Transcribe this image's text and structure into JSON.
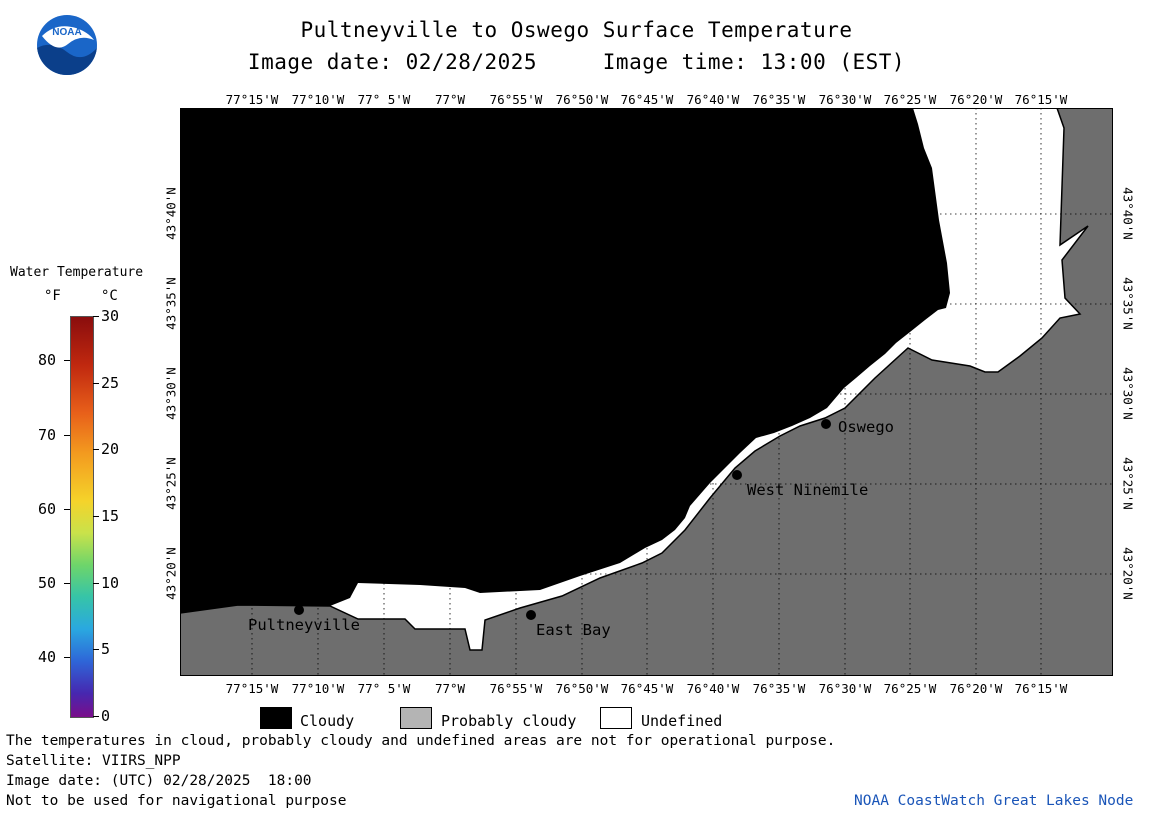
{
  "title": "Pultneyville to Oswego Surface Temperature",
  "subtitle": "Image date: 02/28/2025     Image time: 13:00 (EST)",
  "logo_text": "NOAA",
  "colorbar": {
    "title": "Water Temperature",
    "unit_f": "°F",
    "unit_c": "°C",
    "f_ticks": [
      "80",
      "70",
      "60",
      "50",
      "40"
    ],
    "c_ticks": [
      "30",
      "25",
      "20",
      "15",
      "10",
      "5",
      "0"
    ],
    "f_range": [
      32,
      86
    ],
    "c_range": [
      0,
      30
    ]
  },
  "map": {
    "lon_labels": [
      "77°15'W",
      "77°10'W",
      "77° 5'W",
      "77°W",
      "76°55'W",
      "76°50'W",
      "76°45'W",
      "76°40'W",
      "76°35'W",
      "76°30'W",
      "76°25'W",
      "76°20'W",
      "76°15'W"
    ],
    "lat_labels": [
      "43°40'N",
      "43°35'N",
      "43°30'N",
      "43°25'N",
      "43°20'N"
    ],
    "cities": [
      {
        "name": "Pultneyville"
      },
      {
        "name": "East Bay"
      },
      {
        "name": "West Ninemile"
      },
      {
        "name": "Oswego"
      }
    ],
    "colors": {
      "cloudy": "#000000",
      "probably_cloudy": "#b4b4b4",
      "land": "#6e6e6e",
      "undefined": "#ffffff"
    }
  },
  "legend": [
    {
      "label": "Cloudy",
      "color": "#000000"
    },
    {
      "label": "Probably cloudy",
      "color": "#b4b4b4"
    },
    {
      "label": "Undefined",
      "color": "#ffffff"
    }
  ],
  "footer": {
    "note": "The temperatures in cloud, probably cloudy and undefined areas are not for operational purpose.",
    "satellite": "Satellite: VIIRS_NPP",
    "utc_date": "Image date: (UTC) 02/28/2025  18:00",
    "nav": "Not to be used for navigational purpose",
    "credit": "NOAA CoastWatch Great Lakes Node"
  }
}
